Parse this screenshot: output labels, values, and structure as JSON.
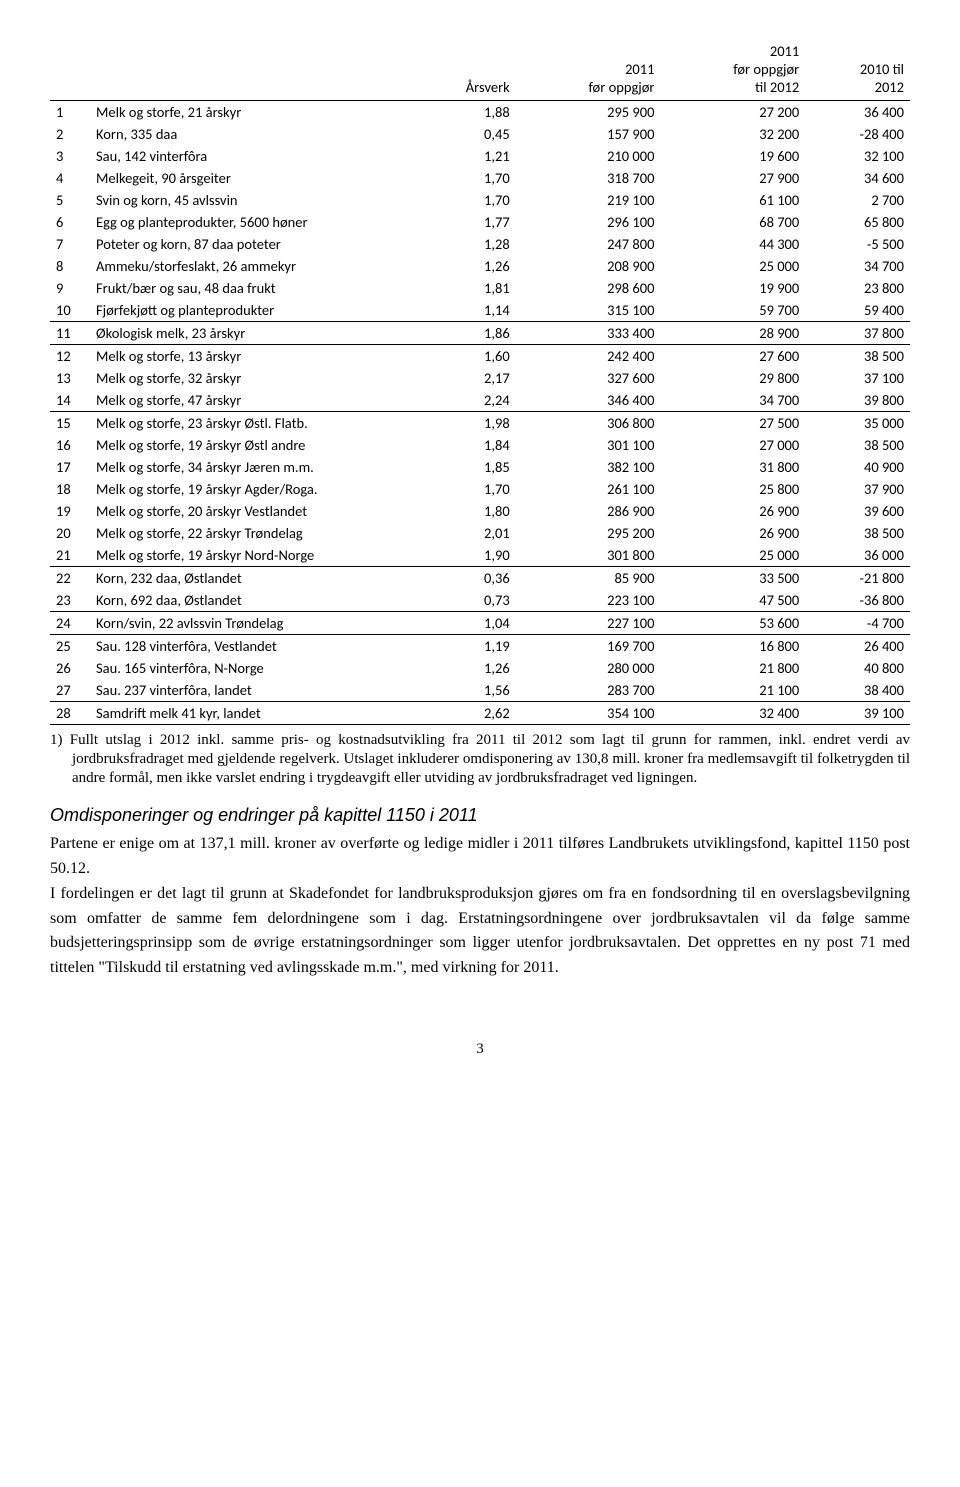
{
  "table": {
    "headers": {
      "aarsverk": "Årsverk",
      "col2011_line1": "2011",
      "col2011_line2": "før oppgjør",
      "col2011b_line1": "2011",
      "col2011b_line2": "før oppgjør",
      "col2011b_line3": "til 2012",
      "col2010_line1": "2010 til",
      "col2010_line2": "2012"
    },
    "rows": [
      {
        "n": "1",
        "desc": "Melk og storfe, 21 årskyr",
        "av": "1,88",
        "c1": "295 900",
        "c2": "27 200",
        "c3": "36 400",
        "sec": false
      },
      {
        "n": "2",
        "desc": "Korn, 335 daa",
        "av": "0,45",
        "c1": "157 900",
        "c2": "32 200",
        "c3": "-28 400",
        "sec": false
      },
      {
        "n": "3",
        "desc": "Sau, 142 vinterfôra",
        "av": "1,21",
        "c1": "210 000",
        "c2": "19 600",
        "c3": "32 100",
        "sec": false
      },
      {
        "n": "4",
        "desc": "Melkegeit, 90 årsgeiter",
        "av": "1,70",
        "c1": "318 700",
        "c2": "27 900",
        "c3": "34 600",
        "sec": false
      },
      {
        "n": "5",
        "desc": "Svin og korn, 45 avlssvin",
        "av": "1,70",
        "c1": "219 100",
        "c2": "61 100",
        "c3": "2 700",
        "sec": false
      },
      {
        "n": "6",
        "desc": "Egg og planteprodukter, 5600 høner",
        "av": "1,77",
        "c1": "296 100",
        "c2": "68 700",
        "c3": "65 800",
        "sec": false
      },
      {
        "n": "7",
        "desc": "Poteter og korn, 87 daa poteter",
        "av": "1,28",
        "c1": "247 800",
        "c2": "44 300",
        "c3": "-5 500",
        "sec": false
      },
      {
        "n": "8",
        "desc": "Ammeku/storfeslakt, 26 ammekyr",
        "av": "1,26",
        "c1": "208 900",
        "c2": "25 000",
        "c3": "34 700",
        "sec": false
      },
      {
        "n": "9",
        "desc": "Frukt/bær og sau, 48 daa frukt",
        "av": "1,81",
        "c1": "298 600",
        "c2": "19 900",
        "c3": "23 800",
        "sec": false
      },
      {
        "n": "10",
        "desc": "Fjørfekjøtt og planteprodukter",
        "av": "1,14",
        "c1": "315 100",
        "c2": "59 700",
        "c3": "59 400",
        "sec": true
      },
      {
        "n": "11",
        "desc": "Økologisk melk, 23 årskyr",
        "av": "1,86",
        "c1": "333 400",
        "c2": "28 900",
        "c3": "37 800",
        "sec": true
      },
      {
        "n": "12",
        "desc": "Melk og storfe, 13 årskyr",
        "av": "1,60",
        "c1": "242 400",
        "c2": "27 600",
        "c3": "38 500",
        "sec": false
      },
      {
        "n": "13",
        "desc": "Melk og storfe, 32 årskyr",
        "av": "2,17",
        "c1": "327 600",
        "c2": "29 800",
        "c3": "37 100",
        "sec": false
      },
      {
        "n": "14",
        "desc": "Melk og storfe, 47 årskyr",
        "av": "2,24",
        "c1": "346 400",
        "c2": "34 700",
        "c3": "39 800",
        "sec": true
      },
      {
        "n": "15",
        "desc": "Melk og storfe, 23 årskyr Østl. Flatb.",
        "av": "1,98",
        "c1": "306 800",
        "c2": "27 500",
        "c3": "35 000",
        "sec": false
      },
      {
        "n": "16",
        "desc": "Melk og storfe, 19 årskyr Østl andre",
        "av": "1,84",
        "c1": "301 100",
        "c2": "27 000",
        "c3": "38 500",
        "sec": false
      },
      {
        "n": "17",
        "desc": "Melk og storfe, 34 årskyr Jæren m.m.",
        "av": "1,85",
        "c1": "382 100",
        "c2": "31 800",
        "c3": "40 900",
        "sec": false
      },
      {
        "n": "18",
        "desc": "Melk og storfe, 19 årskyr Agder/Roga.",
        "av": "1,70",
        "c1": "261 100",
        "c2": "25 800",
        "c3": "37 900",
        "sec": false
      },
      {
        "n": "19",
        "desc": "Melk og storfe, 20 årskyr Vestlandet",
        "av": "1,80",
        "c1": "286 900",
        "c2": "26 900",
        "c3": "39 600",
        "sec": false
      },
      {
        "n": "20",
        "desc": "Melk og storfe, 22 årskyr Trøndelag",
        "av": "2,01",
        "c1": "295 200",
        "c2": "26 900",
        "c3": "38 500",
        "sec": false
      },
      {
        "n": "21",
        "desc": "Melk og storfe, 19 årskyr Nord-Norge",
        "av": "1,90",
        "c1": "301 800",
        "c2": "25 000",
        "c3": "36 000",
        "sec": true
      },
      {
        "n": "22",
        "desc": "Korn, 232 daa, Østlandet",
        "av": "0,36",
        "c1": "85 900",
        "c2": "33 500",
        "c3": "-21 800",
        "sec": false
      },
      {
        "n": "23",
        "desc": "Korn, 692 daa, Østlandet",
        "av": "0,73",
        "c1": "223 100",
        "c2": "47 500",
        "c3": "-36 800",
        "sec": true
      },
      {
        "n": "24",
        "desc": "Korn/svin, 22 avlssvin Trøndelag",
        "av": "1,04",
        "c1": "227 100",
        "c2": "53 600",
        "c3": "-4 700",
        "sec": true
      },
      {
        "n": "25",
        "desc": "Sau. 128 vinterfôra, Vestlandet",
        "av": "1,19",
        "c1": "169 700",
        "c2": "16 800",
        "c3": "26 400",
        "sec": false
      },
      {
        "n": "26",
        "desc": "Sau. 165 vinterfôra, N-Norge",
        "av": "1,26",
        "c1": "280 000",
        "c2": "21 800",
        "c3": "40 800",
        "sec": false
      },
      {
        "n": "27",
        "desc": "Sau. 237 vinterfôra, landet",
        "av": "1,56",
        "c1": "283 700",
        "c2": "21 100",
        "c3": "38 400",
        "sec": true
      },
      {
        "n": "28",
        "desc": "Samdrift melk 41 kyr, landet",
        "av": "2,62",
        "c1": "354 100",
        "c2": "32 400",
        "c3": "39 100",
        "sec": true
      }
    ]
  },
  "footnote": "1)  Fullt utslag i 2012 inkl. samme pris- og kostnadsutvikling fra 2011 til 2012 som lagt til grunn for rammen, inkl. endret verdi av jordbruksfradraget med gjeldende regelverk. Utslaget inkluderer omdisponering av 130,8 mill. kroner fra medlemsavgift til folketrygden til andre formål, men ikke varslet endring i trygdeavgift eller utviding av jordbruksfradraget ved ligningen.",
  "subheading": "Omdisponeringer og endringer på kapittel 1150 i 2011",
  "body": "Partene er enige om at 137,1 mill. kroner av overførte og ledige midler i 2011 tilføres Landbrukets utviklingsfond, kapittel 1150 post 50.12.\nI fordelingen er det lagt til grunn at Skadefondet for landbruksproduksjon gjøres om fra en fondsordning til en overslagsbevilgning som omfatter de samme fem delordningene som i dag. Erstatningsordningene over jordbruksavtalen vil da følge samme budsjetteringsprinsipp som de øvrige erstatningsordninger som ligger utenfor jordbruksavtalen. Det opprettes en ny post 71 med tittelen \"Tilskudd til erstatning ved avlingsskade m.m.\", med virkning for 2011.",
  "pagenum": "3"
}
